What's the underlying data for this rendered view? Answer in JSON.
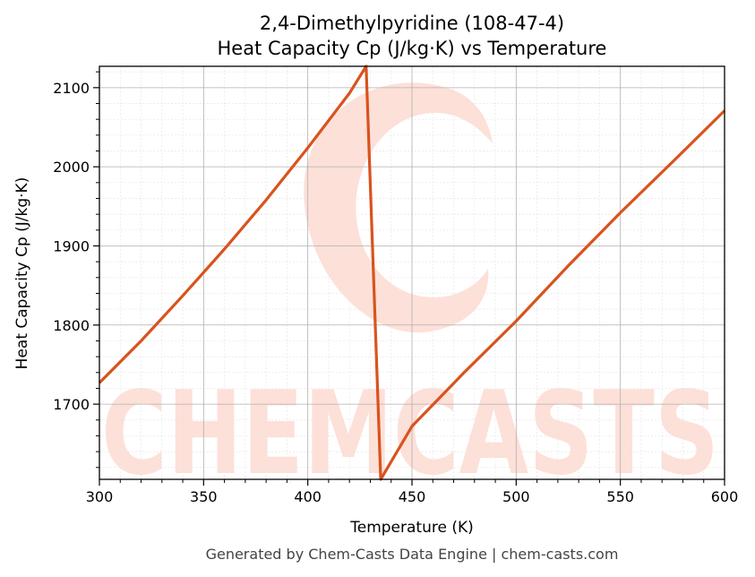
{
  "chart_data": {
    "type": "line",
    "title": "2,4-Dimethylpyridine (108-47-4)",
    "subtitle": "Heat Capacity Cp (J/kg·K) vs Temperature",
    "xlabel": "Temperature (K)",
    "ylabel": "Heat Capacity Cp (J/kg·K)",
    "xlim": [
      300,
      600
    ],
    "ylim": [
      1605,
      2127
    ],
    "xticks": [
      300,
      350,
      400,
      450,
      500,
      550,
      600
    ],
    "yticks": [
      1700,
      1800,
      1900,
      2000,
      2100
    ],
    "grid": true,
    "legend": "none",
    "series": [
      {
        "color": "#d9531e",
        "x": [
          300,
          320,
          340,
          360,
          380,
          400,
          420,
          428,
          435,
          450,
          475,
          500,
          525,
          550,
          575,
          600
        ],
        "y": [
          1727,
          1780,
          1837,
          1896,
          1958,
          2024,
          2093,
          2127,
          1605,
          1672,
          1740,
          1805,
          1875,
          1942,
          2006,
          2071
        ]
      }
    ]
  },
  "watermark": {
    "text": "CHEMCASTS",
    "color": "#fde0d8"
  },
  "footer": "Generated by Chem-Casts Data Engine | chem-casts.com"
}
